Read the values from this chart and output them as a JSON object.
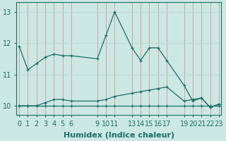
{
  "xlabel": "Humidex (Indice chaleur)",
  "background_color": "#cce8e4",
  "grid_color_x": "#d4a0a0",
  "grid_color_y": "#b8d8d4",
  "line_color": "#1a6e64",
  "series": [
    {
      "x": [
        0,
        1,
        2,
        3,
        4,
        5,
        6,
        9,
        10,
        11,
        13,
        14,
        15,
        16,
        17,
        19,
        20,
        21,
        22,
        23
      ],
      "y": [
        11.9,
        11.15,
        11.35,
        11.55,
        11.65,
        11.6,
        11.6,
        11.5,
        12.25,
        13.0,
        11.85,
        11.45,
        11.85,
        11.85,
        11.45,
        10.65,
        10.15,
        10.25,
        9.95,
        10.05
      ]
    },
    {
      "x": [
        0,
        1,
        2,
        3,
        4,
        5,
        6,
        9,
        10,
        11,
        13,
        14,
        15,
        16,
        17,
        19,
        20,
        21,
        22,
        23
      ],
      "y": [
        10.0,
        10.0,
        10.0,
        10.1,
        10.2,
        10.2,
        10.15,
        10.15,
        10.2,
        10.3,
        10.4,
        10.45,
        10.5,
        10.55,
        10.6,
        10.15,
        10.2,
        10.25,
        9.95,
        10.05
      ]
    },
    {
      "x": [
        0,
        1,
        2,
        3,
        4,
        5,
        6,
        9,
        10,
        11,
        13,
        14,
        15,
        16,
        17,
        19,
        20,
        21,
        22,
        23
      ],
      "y": [
        10.0,
        10.0,
        10.0,
        10.0,
        10.0,
        10.0,
        10.0,
        10.0,
        10.0,
        10.0,
        10.0,
        10.0,
        10.0,
        10.0,
        10.0,
        10.0,
        10.0,
        10.0,
        10.0,
        10.0
      ]
    }
  ],
  "xticks": [
    0,
    1,
    2,
    3,
    4,
    5,
    6,
    9,
    10,
    11,
    13,
    14,
    15,
    16,
    17,
    19,
    20,
    21,
    22,
    23
  ],
  "yticks": [
    10,
    11,
    12,
    13
  ],
  "ylim": [
    9.7,
    13.3
  ],
  "xlim": [
    -0.3,
    23.3
  ],
  "tick_fontsize": 7,
  "xlabel_fontsize": 8
}
